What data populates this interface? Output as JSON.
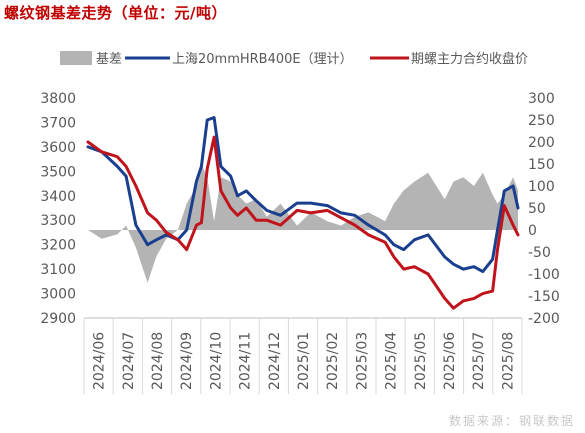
{
  "title": "螺纹钢基差走势（单位：元/吨）",
  "source": "数据来源：钢联数据",
  "colors": {
    "basis": "#b4b4b4",
    "spot": "#1a3f8f",
    "futures": "#c0141c",
    "title": "#c00000",
    "axis": "#595959",
    "source": "#c8c8c8"
  },
  "chart_data": {
    "type": "line",
    "title": "螺纹钢基差走势（单位：元/吨）",
    "legend_position": "top",
    "grid": false,
    "x_ticks": [
      "2024/06",
      "2024/07",
      "2024/08",
      "2024/09",
      "2024/10",
      "2024/11",
      "2024/12",
      "2025/01",
      "2025/02",
      "2025/03",
      "2025/04",
      "2025/05",
      "2025/06",
      "2025/07",
      "2025/08"
    ],
    "y_left": {
      "min": 2900,
      "max": 3800,
      "ticks": [
        2900,
        3000,
        3100,
        3200,
        3300,
        3400,
        3500,
        3600,
        3700,
        3800
      ]
    },
    "y_right": {
      "min": -200,
      "max": 300,
      "ticks": [
        -200,
        -150,
        -100,
        -50,
        0,
        50,
        100,
        150,
        200,
        250,
        300
      ]
    },
    "x": [
      "2024-06-01",
      "2024-06-15",
      "2024-07-01",
      "2024-07-10",
      "2024-07-20",
      "2024-08-01",
      "2024-08-10",
      "2024-08-20",
      "2024-09-01",
      "2024-09-10",
      "2024-09-20",
      "2024-09-25",
      "2024-10-01",
      "2024-10-08",
      "2024-10-15",
      "2024-10-25",
      "2024-11-01",
      "2024-11-10",
      "2024-11-20",
      "2024-12-01",
      "2024-12-15",
      "2025-01-01",
      "2025-01-15",
      "2025-02-01",
      "2025-02-15",
      "2025-03-01",
      "2025-03-15",
      "2025-04-01",
      "2025-04-10",
      "2025-04-20",
      "2025-05-01",
      "2025-05-15",
      "2025-06-01",
      "2025-06-10",
      "2025-06-20",
      "2025-07-01",
      "2025-07-10",
      "2025-07-20",
      "2025-07-25",
      "2025-08-01",
      "2025-08-10",
      "2025-08-15"
    ],
    "series": [
      {
        "name": "基差",
        "axis": "right",
        "style": "area",
        "values": [
          0,
          -20,
          -10,
          10,
          -40,
          -120,
          -60,
          -20,
          0,
          60,
          100,
          150,
          120,
          20,
          120,
          110,
          80,
          60,
          70,
          30,
          60,
          10,
          40,
          20,
          10,
          30,
          40,
          20,
          60,
          90,
          110,
          130,
          70,
          110,
          120,
          100,
          130,
          80,
          60,
          80,
          120,
          90
        ]
      },
      {
        "name": "上海20mmHRB400E（理计）",
        "axis": "left",
        "style": "line",
        "values": [
          3600,
          3580,
          3520,
          3480,
          3280,
          3200,
          3220,
          3240,
          3220,
          3260,
          3460,
          3520,
          3710,
          3720,
          3520,
          3480,
          3400,
          3420,
          3380,
          3340,
          3320,
          3370,
          3370,
          3360,
          3330,
          3320,
          3280,
          3240,
          3200,
          3180,
          3220,
          3240,
          3150,
          3120,
          3100,
          3110,
          3090,
          3140,
          3260,
          3420,
          3440,
          3350
        ]
      },
      {
        "name": "期螺主力合约收盘价",
        "axis": "left",
        "style": "line",
        "values": [
          3620,
          3580,
          3560,
          3520,
          3440,
          3330,
          3300,
          3250,
          3220,
          3180,
          3280,
          3290,
          3510,
          3640,
          3420,
          3350,
          3320,
          3350,
          3300,
          3300,
          3280,
          3340,
          3330,
          3340,
          3310,
          3280,
          3240,
          3210,
          3150,
          3100,
          3110,
          3080,
          2980,
          2940,
          2970,
          2980,
          3000,
          3010,
          3180,
          3360,
          3280,
          3240
        ]
      }
    ]
  }
}
